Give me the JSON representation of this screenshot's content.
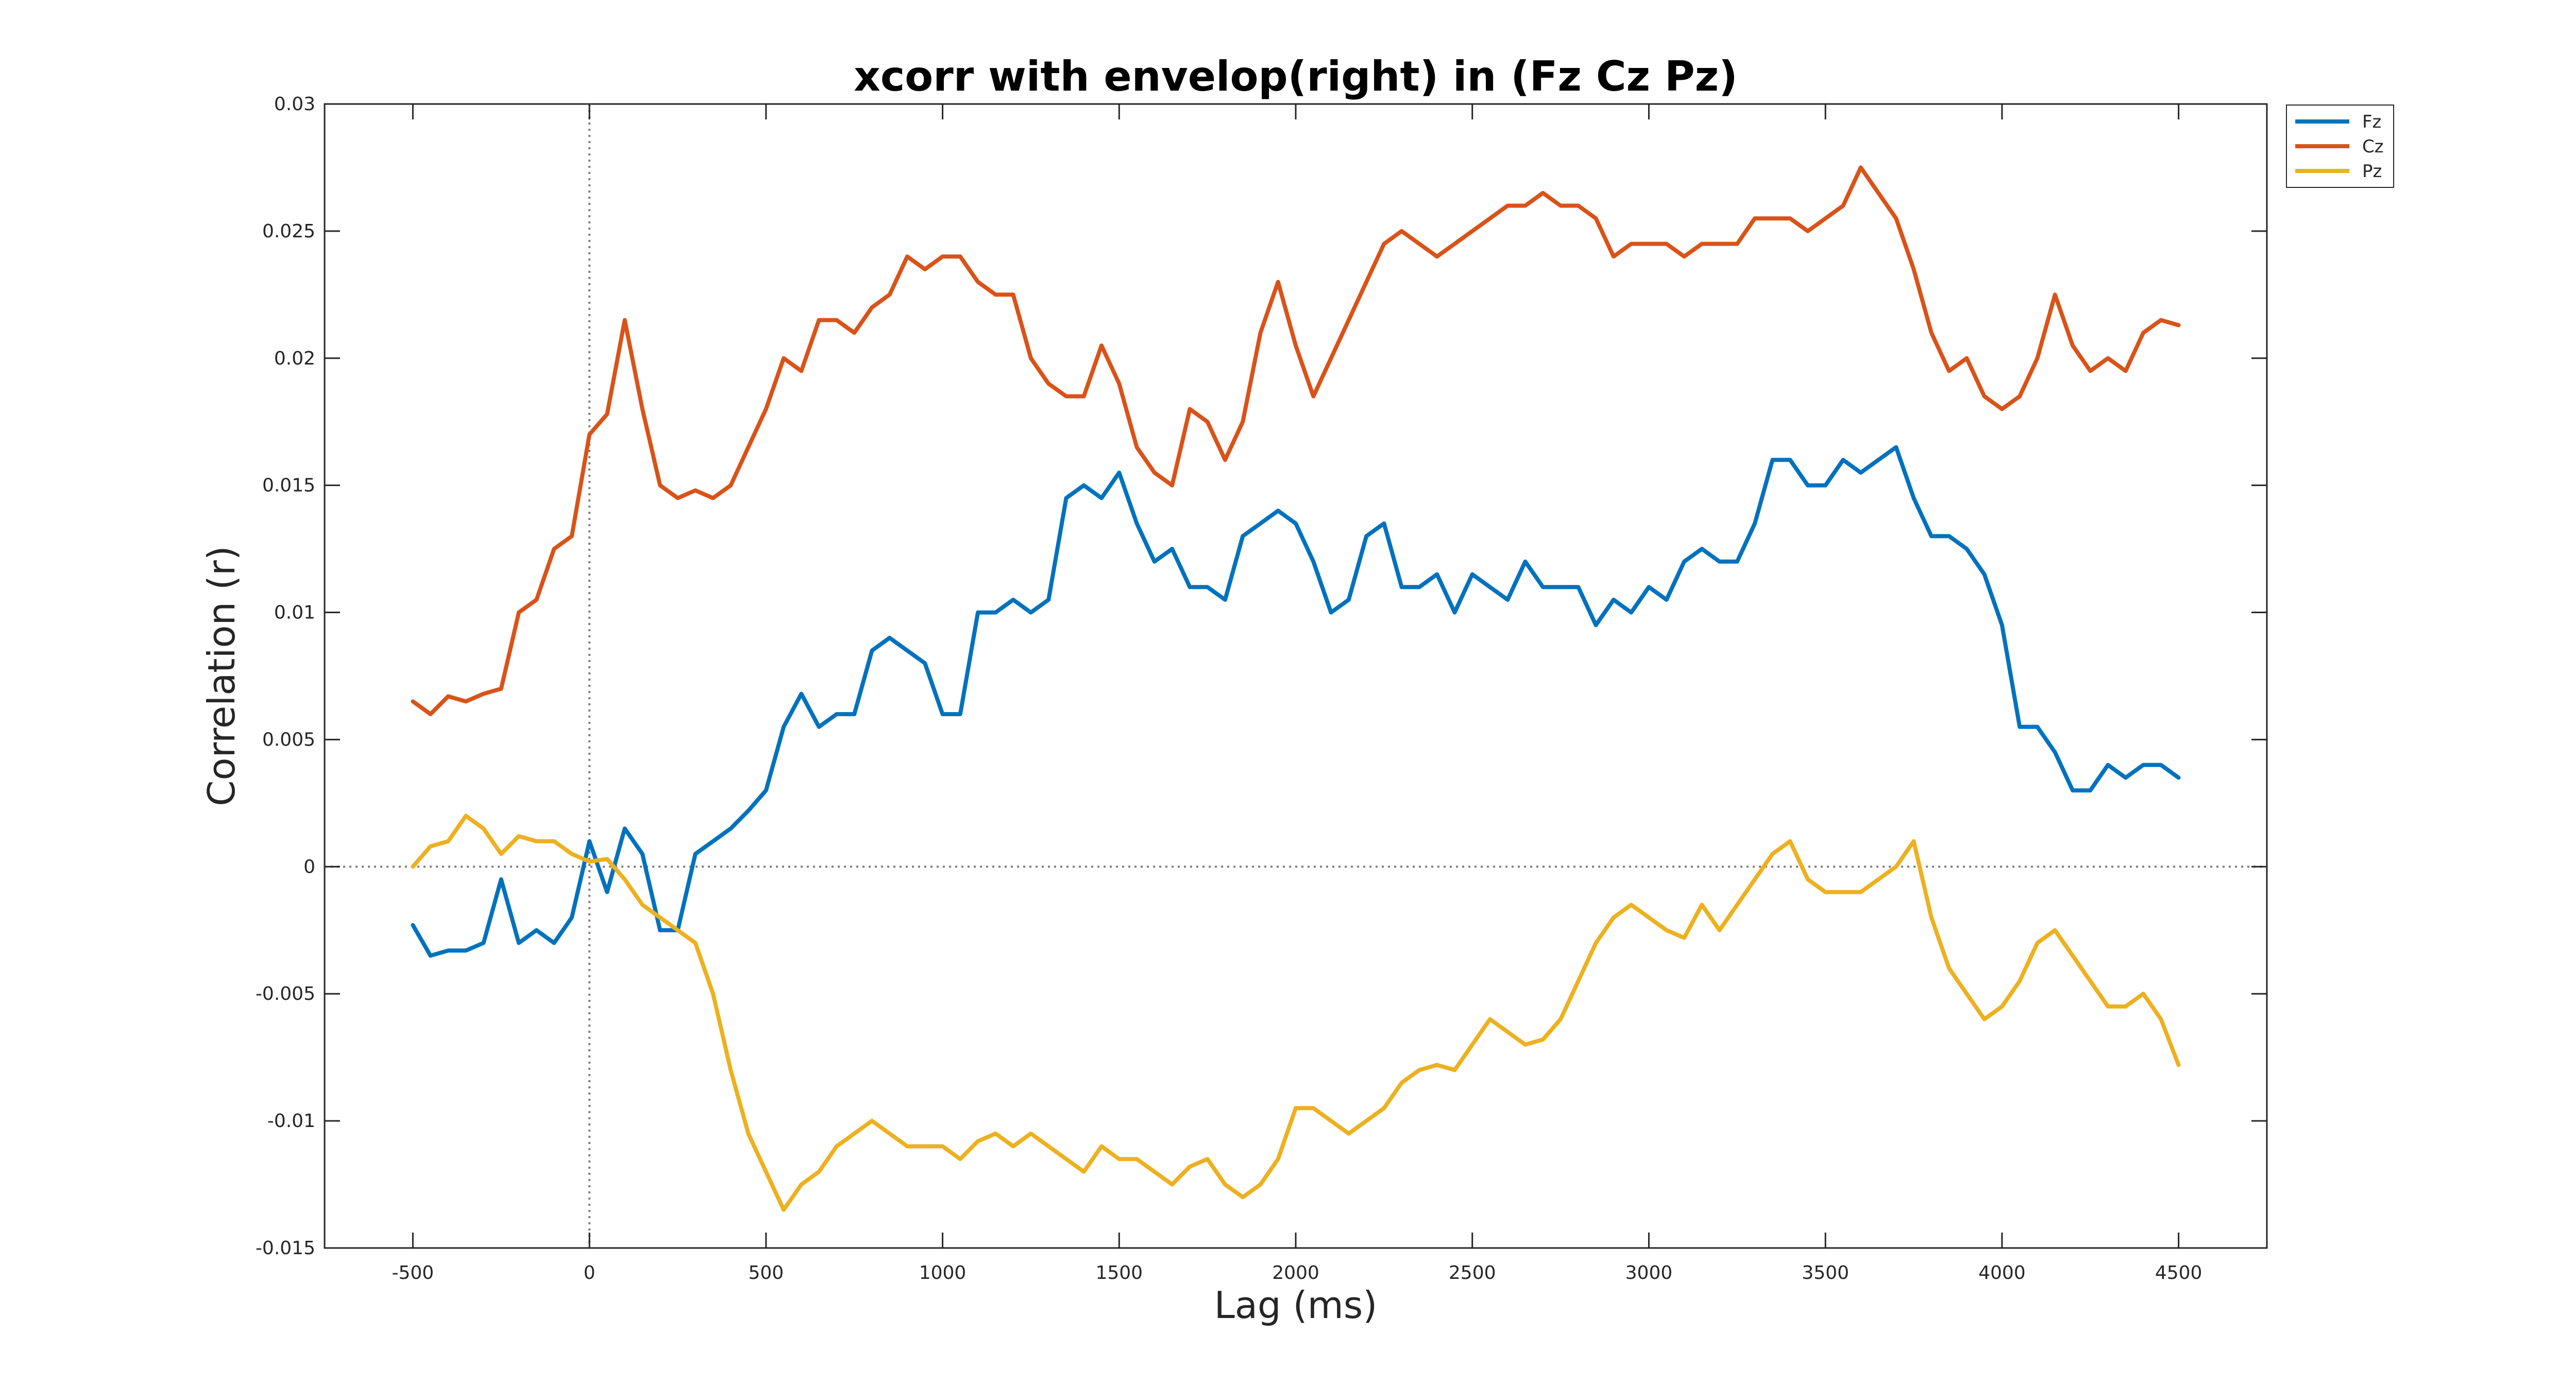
{
  "chart_data": {
    "type": "line",
    "title": "xcorr with envelop(right) in (Fz Cz Pz)",
    "xlabel": "Lag (ms)",
    "ylabel": "Correlation (r)",
    "xlim": [
      -750,
      4750
    ],
    "ylim": [
      -0.015,
      0.03
    ],
    "xticks": [
      -500,
      0,
      500,
      1000,
      1500,
      2000,
      2500,
      3000,
      3500,
      4000,
      4500
    ],
    "xtick_labels": [
      "-500",
      "0",
      "500",
      "1000",
      "1500",
      "2000",
      "2500",
      "3000",
      "3500",
      "4000",
      "4500"
    ],
    "yticks": [
      -0.015,
      -0.01,
      -0.005,
      0,
      0.005,
      0.01,
      0.015,
      0.02,
      0.025,
      0.03
    ],
    "ytick_labels": [
      "-0.015",
      "-0.01",
      "-0.005",
      "0",
      "0.005",
      "0.01",
      "0.015",
      "0.02",
      "0.025",
      "0.03"
    ],
    "grid": false,
    "reference_lines": [
      {
        "orientation": "vertical",
        "x": 0,
        "style": "dotted"
      },
      {
        "orientation": "horizontal",
        "y": 0,
        "style": "dotted"
      }
    ],
    "legend_position": "top-right outside",
    "x": [
      -500,
      -450,
      -400,
      -350,
      -300,
      -250,
      -200,
      -150,
      -100,
      -50,
      0,
      50,
      100,
      150,
      200,
      250,
      300,
      350,
      400,
      450,
      500,
      550,
      600,
      650,
      700,
      750,
      800,
      850,
      900,
      950,
      1000,
      1050,
      1100,
      1150,
      1200,
      1250,
      1300,
      1350,
      1400,
      1450,
      1500,
      1550,
      1600,
      1650,
      1700,
      1750,
      1800,
      1850,
      1900,
      1950,
      2000,
      2050,
      2100,
      2150,
      2200,
      2250,
      2300,
      2350,
      2400,
      2450,
      2500,
      2550,
      2600,
      2650,
      2700,
      2750,
      2800,
      2850,
      2900,
      2950,
      3000,
      3050,
      3100,
      3150,
      3200,
      3250,
      3300,
      3350,
      3400,
      3450,
      3500,
      3550,
      3600,
      3650,
      3700,
      3750,
      3800,
      3850,
      3900,
      3950,
      4000,
      4050,
      4100,
      4150,
      4200,
      4250,
      4300,
      4350,
      4400,
      4450,
      4500
    ],
    "series": [
      {
        "name": "Fz",
        "color": "#0072BD",
        "values": [
          -0.0023,
          -0.0035,
          -0.0033,
          -0.0033,
          -0.003,
          -0.0005,
          -0.003,
          -0.0025,
          -0.003,
          -0.002,
          0.001,
          -0.001,
          0.0015,
          0.0005,
          -0.0025,
          -0.0025,
          0.0005,
          0.001,
          0.0015,
          0.0022,
          0.003,
          0.0055,
          0.0068,
          0.0055,
          0.006,
          0.006,
          0.0085,
          0.009,
          0.0085,
          0.008,
          0.006,
          0.006,
          0.01,
          0.01,
          0.0105,
          0.01,
          0.0105,
          0.0145,
          0.015,
          0.0145,
          0.0155,
          0.0135,
          0.012,
          0.0125,
          0.011,
          0.011,
          0.0105,
          0.013,
          0.0135,
          0.014,
          0.0135,
          0.012,
          0.01,
          0.0105,
          0.013,
          0.0135,
          0.011,
          0.011,
          0.0115,
          0.01,
          0.0115,
          0.011,
          0.0105,
          0.012,
          0.011,
          0.011,
          0.011,
          0.0095,
          0.0105,
          0.01,
          0.011,
          0.0105,
          0.012,
          0.0125,
          0.012,
          0.012,
          0.0135,
          0.016,
          0.016,
          0.015,
          0.015,
          0.016,
          0.0155,
          0.016,
          0.0165,
          0.0145,
          0.013,
          0.013,
          0.0125,
          0.0115,
          0.0095,
          0.0055,
          0.0055,
          0.0045,
          0.003,
          0.003,
          0.004,
          0.0035,
          0.004,
          0.004,
          0.0035
        ]
      },
      {
        "name": "Cz",
        "color": "#D95319",
        "values": [
          0.0065,
          0.006,
          0.0067,
          0.0065,
          0.0068,
          0.007,
          0.01,
          0.0105,
          0.0125,
          0.013,
          0.017,
          0.0178,
          0.0215,
          0.018,
          0.015,
          0.0145,
          0.0148,
          0.0145,
          0.015,
          0.0165,
          0.018,
          0.02,
          0.0195,
          0.0215,
          0.0215,
          0.021,
          0.022,
          0.0225,
          0.024,
          0.0235,
          0.024,
          0.024,
          0.023,
          0.0225,
          0.0225,
          0.02,
          0.019,
          0.0185,
          0.0185,
          0.0205,
          0.019,
          0.0165,
          0.0155,
          0.015,
          0.018,
          0.0175,
          0.016,
          0.0175,
          0.021,
          0.023,
          0.0205,
          0.0185,
          0.02,
          0.0215,
          0.023,
          0.0245,
          0.025,
          0.0245,
          0.024,
          0.0245,
          0.025,
          0.0255,
          0.026,
          0.026,
          0.0265,
          0.026,
          0.026,
          0.0255,
          0.024,
          0.0245,
          0.0245,
          0.0245,
          0.024,
          0.0245,
          0.0245,
          0.0245,
          0.0255,
          0.0255,
          0.0255,
          0.025,
          0.0255,
          0.026,
          0.0275,
          0.0265,
          0.0255,
          0.0235,
          0.021,
          0.0195,
          0.02,
          0.0185,
          0.018,
          0.0185,
          0.02,
          0.0225,
          0.0205,
          0.0195,
          0.02,
          0.0195,
          0.021,
          0.0215,
          0.0213
        ]
      },
      {
        "name": "Pz",
        "color": "#EDB120",
        "values": [
          0.0,
          0.0008,
          0.001,
          0.002,
          0.0015,
          0.0005,
          0.0012,
          0.001,
          0.001,
          0.0005,
          0.0002,
          0.0003,
          -0.0005,
          -0.0015,
          -0.002,
          -0.0025,
          -0.003,
          -0.005,
          -0.008,
          -0.0105,
          -0.012,
          -0.0135,
          -0.0125,
          -0.012,
          -0.011,
          -0.0105,
          -0.01,
          -0.0105,
          -0.011,
          -0.011,
          -0.011,
          -0.0115,
          -0.0108,
          -0.0105,
          -0.011,
          -0.0105,
          -0.011,
          -0.0115,
          -0.012,
          -0.011,
          -0.0115,
          -0.0115,
          -0.012,
          -0.0125,
          -0.0118,
          -0.0115,
          -0.0125,
          -0.013,
          -0.0125,
          -0.0115,
          -0.0095,
          -0.0095,
          -0.01,
          -0.0105,
          -0.01,
          -0.0095,
          -0.0085,
          -0.008,
          -0.0078,
          -0.008,
          -0.007,
          -0.006,
          -0.0065,
          -0.007,
          -0.0068,
          -0.006,
          -0.0045,
          -0.003,
          -0.002,
          -0.0015,
          -0.002,
          -0.0025,
          -0.0028,
          -0.0015,
          -0.0025,
          -0.0015,
          -0.0005,
          0.0005,
          0.001,
          -0.0005,
          -0.001,
          -0.001,
          -0.001,
          -0.0005,
          0.0,
          0.001,
          -0.002,
          -0.004,
          -0.005,
          -0.006,
          -0.0055,
          -0.0045,
          -0.003,
          -0.0025,
          -0.0035,
          -0.0045,
          -0.0055,
          -0.0055,
          -0.005,
          -0.006,
          -0.0078
        ]
      }
    ]
  }
}
